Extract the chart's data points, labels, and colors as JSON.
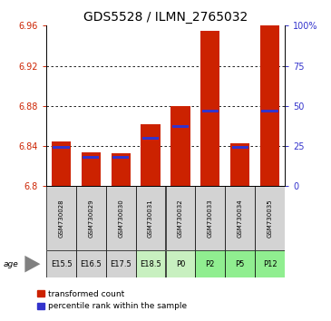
{
  "title": "GDS5528 / ILMN_2765032",
  "samples": [
    "GSM730028",
    "GSM730029",
    "GSM730030",
    "GSM730031",
    "GSM730032",
    "GSM730033",
    "GSM730034",
    "GSM730035"
  ],
  "age_labels": [
    "E15.5",
    "E16.5",
    "E17.5",
    "E18.5",
    "P0",
    "P2",
    "P5",
    "P12"
  ],
  "age_bg_colors": [
    "#d3d3d3",
    "#d3d3d3",
    "#d3d3d3",
    "#c8f0c0",
    "#c8f0c0",
    "#90ee90",
    "#90ee90",
    "#90ee90"
  ],
  "sample_bg_colors": [
    "#d3d3d3",
    "#d3d3d3",
    "#d3d3d3",
    "#d3d3d3",
    "#d3d3d3",
    "#d3d3d3",
    "#d3d3d3",
    "#d3d3d3"
  ],
  "red_values": [
    6.845,
    6.834,
    6.833,
    6.862,
    6.88,
    6.955,
    6.843,
    6.96
  ],
  "blue_values_pct": [
    24,
    18,
    18,
    30,
    37,
    47,
    24,
    47
  ],
  "ylim": [
    6.8,
    6.96
  ],
  "y_ticks": [
    6.8,
    6.84,
    6.88,
    6.92,
    6.96
  ],
  "right_ticks": [
    0,
    25,
    50,
    75,
    100
  ],
  "right_tick_labels": [
    "0",
    "25",
    "50",
    "75",
    "100%"
  ],
  "bar_bottom": 6.8,
  "red_color": "#cc2200",
  "blue_color": "#3333cc",
  "title_fontsize": 10,
  "tick_fontsize": 7,
  "sample_fontsize": 5,
  "age_fontsize": 6,
  "legend_fontsize": 6.5
}
